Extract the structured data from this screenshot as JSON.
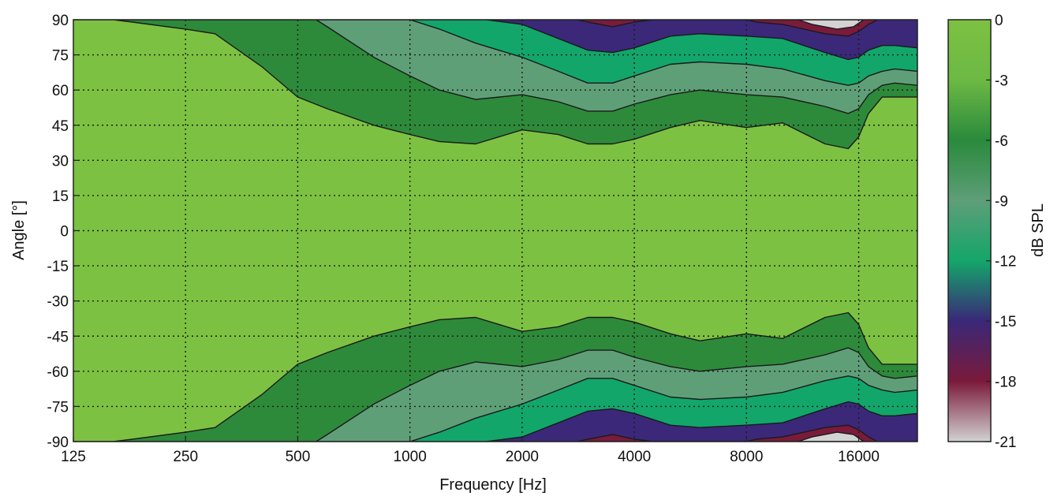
{
  "chart_data": {
    "type": "heatmap",
    "subtype": "filled-contour (polar directivity, symmetric about 0°)",
    "title": "",
    "xlabel": "Frequency [Hz]",
    "ylabel": "Angle [°]",
    "colorbar_label": "dB SPL",
    "x_scale": "log2",
    "x_ticks": [
      125,
      250,
      500,
      1000,
      2000,
      4000,
      8000,
      16000
    ],
    "x_tick_labels": [
      "125",
      "250",
      "500",
      "1000",
      "2000",
      "4000",
      "8000",
      "16000"
    ],
    "xlim": [
      125,
      23000
    ],
    "y_ticks": [
      90,
      75,
      60,
      45,
      30,
      15,
      0,
      -15,
      -30,
      -45,
      -60,
      -75,
      -90
    ],
    "y_tick_labels": [
      "90",
      "75",
      "60",
      "45",
      "30",
      "15",
      "0",
      "-15",
      "-30",
      "-45",
      "-60",
      "-75",
      "-90"
    ],
    "ylim": [
      -90,
      90
    ],
    "colorbar_ticks": [
      0,
      -3,
      -6,
      -9,
      -12,
      -15,
      -18,
      -21
    ],
    "colorbar_tick_labels": [
      "0",
      "-3",
      "-6",
      "-9",
      "-12",
      "-15",
      "-18",
      "-21"
    ],
    "colorbar_range": [
      -21,
      0
    ],
    "grid": true,
    "colormap": [
      {
        "level": 0,
        "color": "#7dc142"
      },
      {
        "level": -3,
        "color": "#6cb944"
      },
      {
        "level": -6,
        "color": "#2a8a3c"
      },
      {
        "level": -9,
        "color": "#5e9e78"
      },
      {
        "level": -12,
        "color": "#14a66a"
      },
      {
        "level": -15,
        "color": "#3a2878"
      },
      {
        "level": -18,
        "color": "#7a1a3a"
      },
      {
        "level": -21,
        "color": "#d2d2d2"
      }
    ],
    "contour_levels": [
      {
        "level": "-6 dB",
        "color": "#2d8a3a",
        "boundary_angle_deg": [
          [
            125,
            90
          ],
          [
            160,
            90
          ],
          [
            180,
            89
          ],
          [
            250,
            86
          ],
          [
            300,
            84
          ],
          [
            400,
            70
          ],
          [
            500,
            57
          ],
          [
            600,
            52
          ],
          [
            800,
            45
          ],
          [
            1000,
            41
          ],
          [
            1200,
            38
          ],
          [
            1500,
            37
          ],
          [
            2000,
            43
          ],
          [
            2500,
            41
          ],
          [
            3000,
            37
          ],
          [
            3500,
            37
          ],
          [
            4000,
            39
          ],
          [
            5000,
            44
          ],
          [
            6000,
            47
          ],
          [
            8000,
            44
          ],
          [
            10000,
            46
          ],
          [
            13000,
            37
          ],
          [
            15000,
            35
          ],
          [
            16000,
            40
          ],
          [
            17000,
            50
          ],
          [
            18500,
            57
          ],
          [
            20000,
            57
          ],
          [
            23000,
            57
          ]
        ]
      },
      {
        "level": "-9 dB",
        "color": "#5f9f78",
        "boundary_angle_deg": [
          [
            560,
            90
          ],
          [
            600,
            87
          ],
          [
            800,
            74
          ],
          [
            1000,
            66
          ],
          [
            1200,
            60
          ],
          [
            1500,
            56
          ],
          [
            2000,
            58
          ],
          [
            2500,
            55
          ],
          [
            3000,
            51
          ],
          [
            3500,
            51
          ],
          [
            4000,
            54
          ],
          [
            5000,
            58
          ],
          [
            6000,
            60
          ],
          [
            8000,
            58
          ],
          [
            10000,
            57
          ],
          [
            13000,
            53
          ],
          [
            15000,
            50
          ],
          [
            16000,
            52
          ],
          [
            17000,
            58
          ],
          [
            18500,
            62
          ],
          [
            20000,
            63
          ],
          [
            23000,
            62
          ]
        ]
      },
      {
        "level": "-12 dB",
        "color": "#12a66b",
        "boundary_angle_deg": [
          [
            1000,
            90
          ],
          [
            1200,
            86
          ],
          [
            1500,
            80
          ],
          [
            2000,
            74
          ],
          [
            2500,
            68
          ],
          [
            3000,
            63
          ],
          [
            3500,
            63
          ],
          [
            4000,
            66
          ],
          [
            5000,
            71
          ],
          [
            6000,
            72
          ],
          [
            8000,
            71
          ],
          [
            10000,
            69
          ],
          [
            13000,
            64
          ],
          [
            15000,
            62
          ],
          [
            16000,
            63
          ],
          [
            17000,
            66
          ],
          [
            18500,
            68
          ],
          [
            20000,
            69
          ],
          [
            23000,
            68
          ]
        ]
      },
      {
        "level": "-15 dB",
        "color": "#3b2879",
        "boundary_angle_deg": [
          [
            1600,
            90
          ],
          [
            2000,
            88
          ],
          [
            2500,
            82
          ],
          [
            3000,
            77
          ],
          [
            3500,
            76
          ],
          [
            4000,
            78
          ],
          [
            5000,
            83
          ],
          [
            6000,
            84
          ],
          [
            8000,
            83
          ],
          [
            10000,
            82
          ],
          [
            13000,
            76
          ],
          [
            15000,
            73
          ],
          [
            16000,
            74
          ],
          [
            17000,
            77
          ],
          [
            18500,
            79
          ],
          [
            20000,
            79
          ],
          [
            23000,
            78
          ]
        ]
      },
      {
        "level": "-18 dB",
        "color": "#7b1b3b",
        "boundary_angle_deg": [
          [
            2800,
            90
          ],
          [
            3000,
            89
          ],
          [
            3500,
            87
          ],
          [
            4000,
            89
          ],
          [
            4500,
            90
          ],
          [
            8000,
            90
          ],
          [
            8500,
            89
          ],
          [
            10000,
            88
          ],
          [
            13000,
            84
          ],
          [
            15000,
            83
          ],
          [
            16000,
            85
          ],
          [
            17000,
            88
          ],
          [
            18000,
            90
          ]
        ]
      },
      {
        "level": "-21 dB",
        "color": "#d3d3d3",
        "boundary_angle_deg": [
          [
            11000,
            90
          ],
          [
            12000,
            88
          ],
          [
            14000,
            86
          ],
          [
            15500,
            87
          ],
          [
            16500,
            90
          ]
        ]
      }
    ]
  }
}
